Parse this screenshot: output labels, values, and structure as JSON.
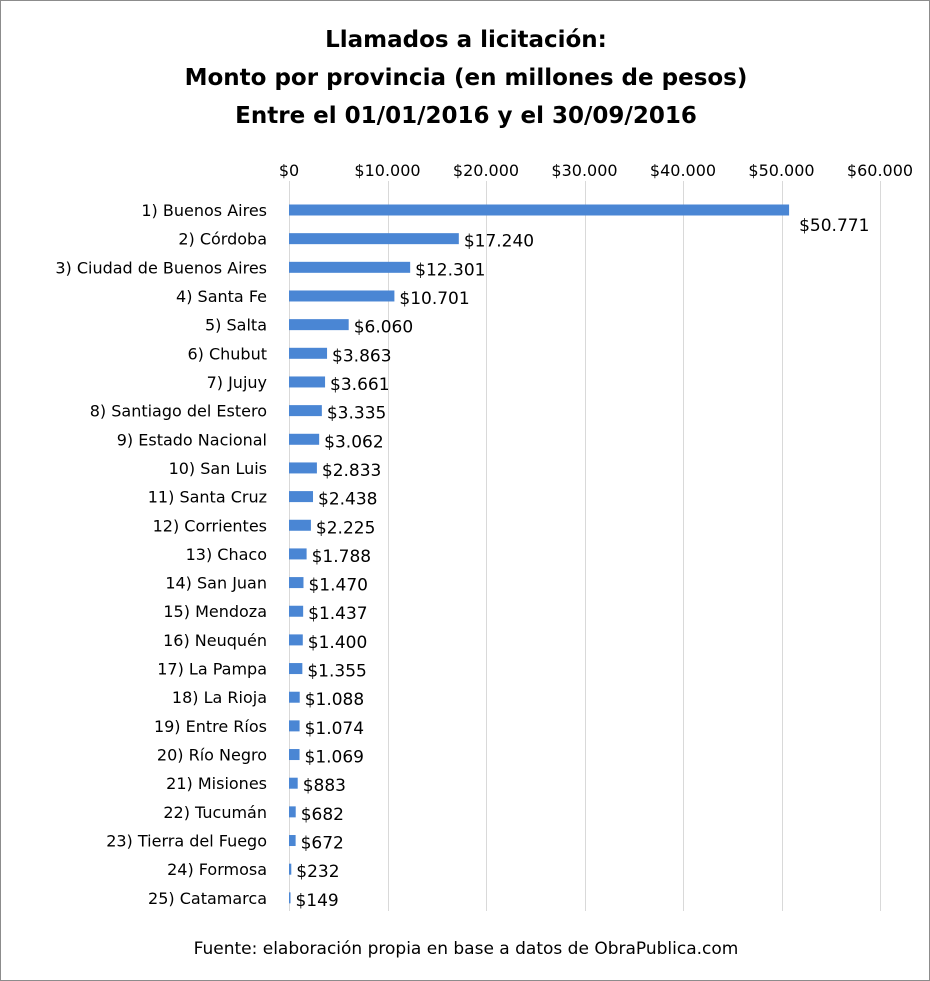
{
  "chart_data": {
    "type": "bar",
    "orientation": "horizontal",
    "title": [
      "Llamados a licitación:",
      "Monto por provincia (en millones de pesos)",
      "Entre el 01/01/2016 y el 30/09/2016"
    ],
    "categories": [
      "1) Buenos Aires",
      "2) Córdoba",
      "3) Ciudad de Buenos Aires",
      "4) Santa Fe",
      "5) Salta",
      "6) Chubut",
      "7) Jujuy",
      "8) Santiago del Estero",
      "9) Estado Nacional",
      "10) San Luis",
      "11) Santa Cruz",
      "12) Corrientes",
      "13) Chaco",
      "14) San Juan",
      "15) Mendoza",
      "16) Neuquén",
      "17) La Pampa",
      "18) La Rioja",
      "19) Entre Ríos",
      "20) Río Negro",
      "21) Misiones",
      "22) Tucumán",
      "23) Tierra del Fuego",
      "24) Formosa",
      "25) Catamarca"
    ],
    "values": [
      50771,
      17240,
      12301,
      10701,
      6060,
      3863,
      3661,
      3335,
      3062,
      2833,
      2438,
      2225,
      1788,
      1470,
      1437,
      1400,
      1355,
      1088,
      1074,
      1069,
      883,
      682,
      672,
      232,
      149
    ],
    "data_labels": [
      "$50.771",
      "$17.240",
      "$12.301",
      "$10.701",
      "$6.060",
      "$3.863",
      "$3.661",
      "$3.335",
      "$3.062",
      "$2.833",
      "$2.438",
      "$2.225",
      "$1.788",
      "$1.470",
      "$1.437",
      "$1.400",
      "$1.355",
      "$1.088",
      "$1.074",
      "$1.069",
      "$883",
      "$682",
      "$672",
      "$232",
      "$149"
    ],
    "x_ticks": [
      0,
      10000,
      20000,
      30000,
      40000,
      50000,
      60000
    ],
    "x_tick_labels": [
      "$0",
      "$10.000",
      "$20.000",
      "$30.000",
      "$40.000",
      "$50.000",
      "$60.000"
    ],
    "xlim": [
      0,
      60000
    ],
    "x_axis_position": "top",
    "grid": true,
    "legend": "none",
    "bar_color": "#4a86d4"
  },
  "source": "Fuente: elaboración propia en base a datos de ObraPublica.com"
}
